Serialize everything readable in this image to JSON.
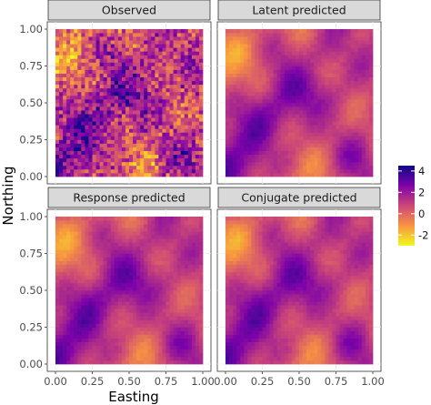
{
  "chart_data": {
    "type": "heatmap",
    "xlabel": "Easting",
    "ylabel": "Northing",
    "x_ticks": [
      "0.00",
      "0.25",
      "0.50",
      "0.75",
      "1.00"
    ],
    "y_ticks": [
      "0.00",
      "0.25",
      "0.50",
      "0.75",
      "1.00"
    ],
    "xlim": [
      0,
      1
    ],
    "ylim": [
      0,
      1
    ],
    "colorscale": "plasma (reversed)",
    "colorscale_colors": [
      "#0d0887",
      "#7e03a8",
      "#cc4778",
      "#f89540",
      "#f0f921"
    ],
    "value_range": [
      -3,
      4.5
    ],
    "legend": {
      "title": "",
      "ticks": [
        "4",
        "2",
        "0",
        "-2"
      ],
      "tick_values": [
        4,
        2,
        0,
        -2
      ],
      "placement": "right"
    },
    "panels": [
      {
        "title": "Observed",
        "field": "observed",
        "grid": 40
      },
      {
        "title": "Latent predicted",
        "field": "smooth",
        "grid": 40
      },
      {
        "title": "Response predicted",
        "field": "smooth",
        "grid": 40
      },
      {
        "title": "Conjugate predicted",
        "field": "smooth",
        "grid": 40
      }
    ]
  }
}
